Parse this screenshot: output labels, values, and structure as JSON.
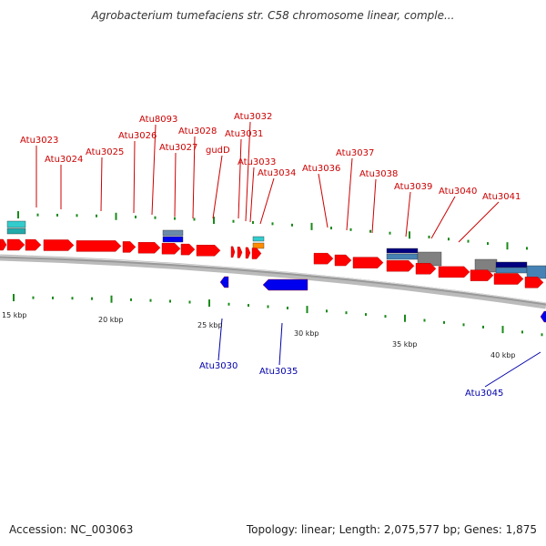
{
  "title": "Agrobacterium tumefaciens str. C58 chromosome linear, comple...",
  "footer": {
    "accession": "Accession: NC_003063",
    "stats": "Topology: linear; Length: 2,075,577 bp; Genes: 1,875"
  },
  "colors": {
    "forward_gene": "#ff0000",
    "reverse_gene": "#0000ee",
    "forward_label": "#cc0000",
    "reverse_label": "#0000aa",
    "tick": "#1a8a1a",
    "backbone": "#888888",
    "cyan_feature": "#33cccc",
    "navy_feature": "#000080",
    "steel_feature": "#4682b4",
    "gray_feature": "#808080",
    "orange_feature": "#ff8c00"
  },
  "scale_labels": [
    "15 kbp",
    "20 kbp",
    "25 kbp",
    "30 kbp",
    "35 kbp",
    "40 kbp"
  ],
  "forward_gene_labels": [
    "Atu3023",
    "Atu3024",
    "Atu3025",
    "Atu3026",
    "Atu8093",
    "Atu3027",
    "Atu3028",
    "gudD",
    "Atu3031",
    "Atu3032",
    "Atu3033",
    "Atu3034",
    "Atu3036",
    "Atu3037",
    "Atu3038",
    "Atu3039",
    "Atu3040",
    "Atu3041"
  ],
  "reverse_gene_labels": [
    "Atu3030",
    "Atu3035",
    "Atu3045"
  ]
}
